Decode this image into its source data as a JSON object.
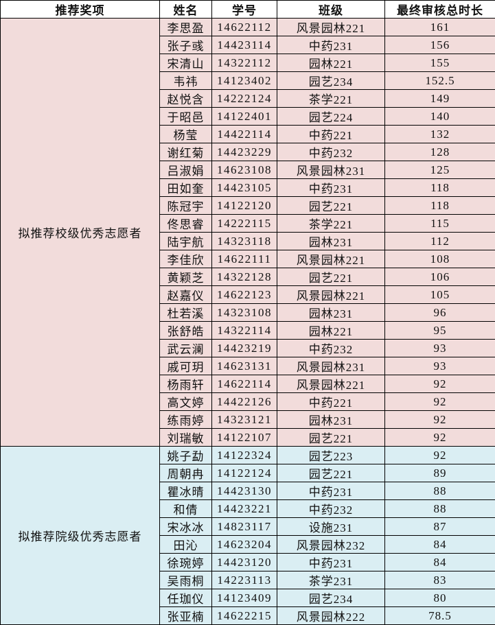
{
  "headers": [
    "推荐奖项",
    "姓名",
    "学号",
    "班级",
    "最终审核总时长"
  ],
  "colors": {
    "school_group_bg": "#f2dcdb",
    "college_group_bg": "#daeef3",
    "header_bg": "#ffffff"
  },
  "groups": [
    {
      "award": "拟推荐校级优秀志愿者",
      "tone": "pink",
      "rows": [
        [
          "李思盈",
          "14622112",
          "风景园林221",
          "161"
        ],
        [
          "张子彧",
          "14423114",
          "中药231",
          "156"
        ],
        [
          "宋清山",
          "14322112",
          "园林221",
          "155"
        ],
        [
          "韦祎",
          "14123402",
          "园艺234",
          "152.5"
        ],
        [
          "赵悦含",
          "14222124",
          "茶学221",
          "149"
        ],
        [
          "于昭邑",
          "14122401",
          "园艺224",
          "140"
        ],
        [
          "杨莹",
          "14422114",
          "中药221",
          "132"
        ],
        [
          "谢红菊",
          "14423229",
          "中药232",
          "128"
        ],
        [
          "吕淑娟",
          "14623108",
          "风景园林231",
          "125"
        ],
        [
          "田如奎",
          "14423105",
          "中药231",
          "118"
        ],
        [
          "陈冠宇",
          "14122120",
          "园艺221",
          "118"
        ],
        [
          "佟思睿",
          "14222115",
          "茶学221",
          "115"
        ],
        [
          "陆宇航",
          "14323118",
          "园林231",
          "112"
        ],
        [
          "李佳欣",
          "14622111",
          "风景园林221",
          "108"
        ],
        [
          "黄颖芝",
          "14322128",
          "园艺221",
          "106"
        ],
        [
          "赵嘉仪",
          "14622123",
          "风景园林221",
          "105"
        ],
        [
          "杜若溪",
          "14323108",
          "园林231",
          "96"
        ],
        [
          "张舒皓",
          "14322114",
          "园林221",
          "95"
        ],
        [
          "武云澜",
          "14423219",
          "中药232",
          "93"
        ],
        [
          "戚可玥",
          "14623131",
          "风景园林231",
          "93"
        ],
        [
          "杨雨轩",
          "14622114",
          "风景园林221",
          "92"
        ],
        [
          "高文婷",
          "14422126",
          "中药221",
          "92"
        ],
        [
          "练雨婷",
          "14323121",
          "园林231",
          "92"
        ],
        [
          "刘瑞敏",
          "14122107",
          "园艺221",
          "92"
        ]
      ]
    },
    {
      "award": "拟推荐院级优秀志愿者",
      "tone": "blue",
      "rows": [
        [
          "姚子勐",
          "14122324",
          "园艺223",
          "92"
        ],
        [
          "周朝冉",
          "14122124",
          "园艺221",
          "89"
        ],
        [
          "瞿冰晴",
          "14423130",
          "中药231",
          "88"
        ],
        [
          "和倩",
          "14423221",
          "中药232",
          "88"
        ],
        [
          "宋冰冰",
          "14823117",
          "设施231",
          "87"
        ],
        [
          "田沁",
          "14623204",
          "风景园林232",
          "84"
        ],
        [
          "徐琬婷",
          "14423120",
          "中药231",
          "84"
        ],
        [
          "吴雨桐",
          "14223113",
          "茶学231",
          "83"
        ],
        [
          "任珈仪",
          "14123409",
          "园艺234",
          "80"
        ],
        [
          "张亚楠",
          "14622215",
          "风景园林222",
          "78.5"
        ]
      ]
    }
  ]
}
